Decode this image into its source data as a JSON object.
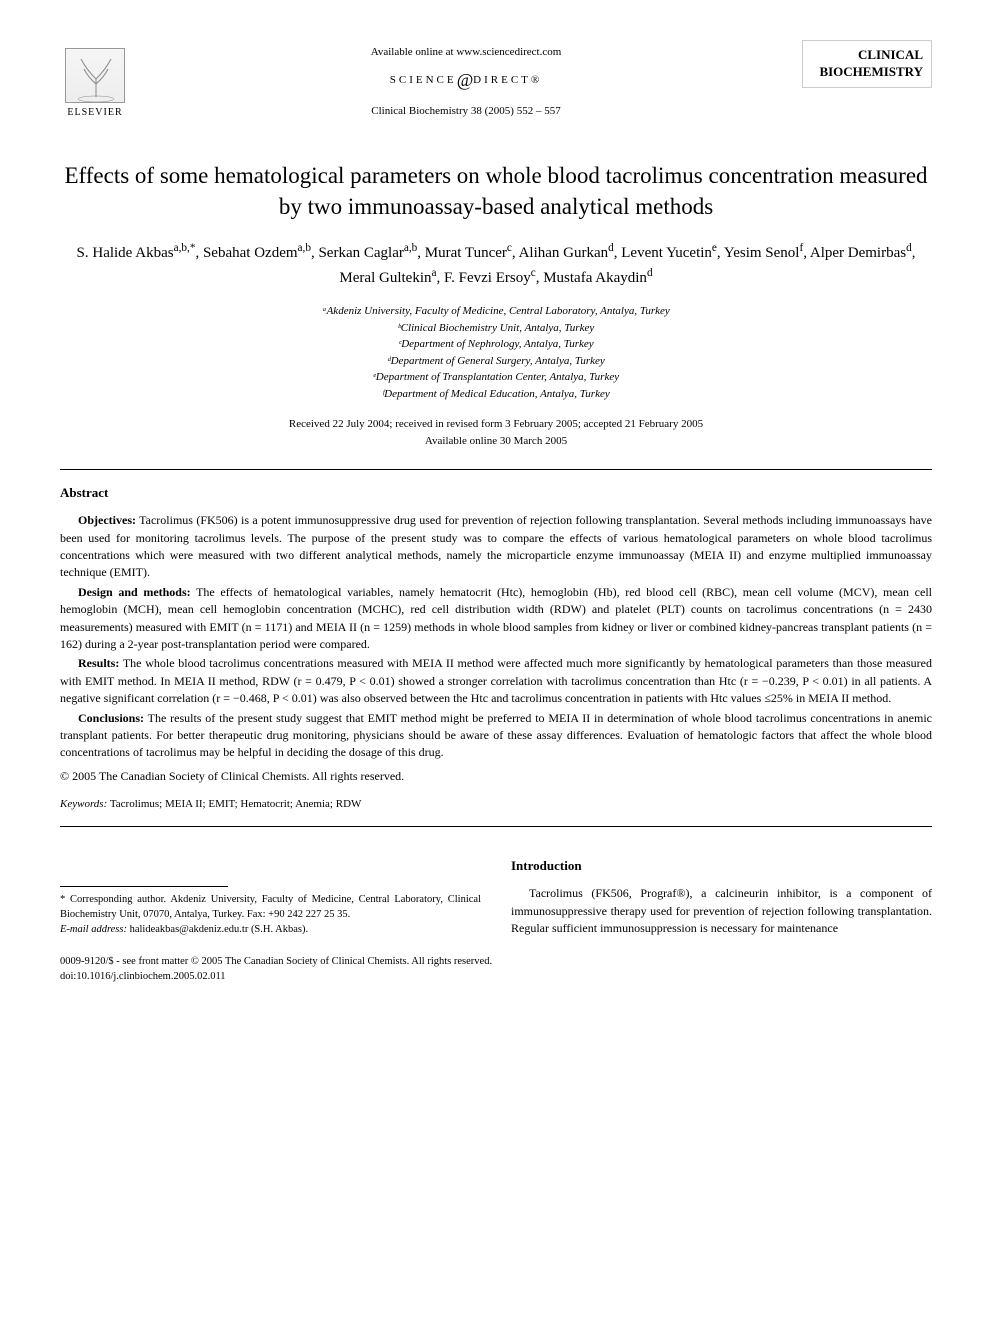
{
  "header": {
    "available_online": "Available online at www.sciencedirect.com",
    "sd_left": "SCIENCE",
    "sd_right": "DIRECT®",
    "journal_ref": "Clinical Biochemistry 38 (2005) 552 – 557",
    "elsevier": "ELSEVIER",
    "journal_logo_l1": "CLINICAL",
    "journal_logo_l2": "BIOCHEMISTRY"
  },
  "title": "Effects of some hematological parameters on whole blood tacrolimus concentration measured by two immunoassay-based analytical methods",
  "authors_html": "S. Halide Akbas<sup>a,b,*</sup>, Sebahat Ozdem<sup>a,b</sup>, Serkan Caglar<sup>a,b</sup>, Murat Tuncer<sup>c</sup>, Alihan Gurkan<sup>d</sup>, Levent Yucetin<sup>e</sup>, Yesim Senol<sup>f</sup>, Alper Demirbas<sup>d</sup>, Meral Gultekin<sup>a</sup>, F. Fevzi Ersoy<sup>c</sup>, Mustafa Akaydin<sup>d</sup>",
  "affiliations": [
    "ᵃAkdeniz University, Faculty of Medicine, Central Laboratory, Antalya, Turkey",
    "ᵇClinical Biochemistry Unit, Antalya, Turkey",
    "ᶜDepartment of Nephrology, Antalya, Turkey",
    "ᵈDepartment of General Surgery, Antalya, Turkey",
    "ᵉDepartment of Transplantation Center, Antalya, Turkey",
    "ᶠDepartment of Medical Education, Antalya, Turkey"
  ],
  "dates": {
    "received": "Received 22 July 2004; received in revised form 3 February 2005; accepted 21 February 2005",
    "online": "Available online 30 March 2005"
  },
  "abstract": {
    "heading": "Abstract",
    "sections": [
      {
        "label": "Objectives:",
        "text": "Tacrolimus (FK506) is a potent immunosuppressive drug used for prevention of rejection following transplantation. Several methods including immunoassays have been used for monitoring tacrolimus levels. The purpose of the present study was to compare the effects of various hematological parameters on whole blood tacrolimus concentrations which were measured with two different analytical methods, namely the microparticle enzyme immunoassay (MEIA II) and enzyme multiplied immunoassay technique (EMIT)."
      },
      {
        "label": "Design and methods:",
        "text": "The effects of hematological variables, namely hematocrit (Htc), hemoglobin (Hb), red blood cell (RBC), mean cell volume (MCV), mean cell hemoglobin (MCH), mean cell hemoglobin concentration (MCHC), red cell distribution width (RDW) and platelet (PLT) counts on tacrolimus concentrations (n = 2430 measurements) measured with EMIT (n = 1171) and MEIA II (n = 1259) methods in whole blood samples from kidney or liver or combined kidney-pancreas transplant patients (n = 162) during a 2-year post-transplantation period were compared."
      },
      {
        "label": "Results:",
        "text": "The whole blood tacrolimus concentrations measured with MEIA II method were affected much more significantly by hematological parameters than those measured with EMIT method. In MEIA II method, RDW (r = 0.479, P < 0.01) showed a stronger correlation with tacrolimus concentration than Htc (r = −0.239, P < 0.01) in all patients. A negative significant correlation (r = −0.468, P < 0.01) was also observed between the Htc and tacrolimus concentration in patients with Htc values ≤25% in MEIA II method."
      },
      {
        "label": "Conclusions:",
        "text": "The results of the present study suggest that EMIT method might be preferred to MEIA II in determination of whole blood tacrolimus concentrations in anemic transplant patients. For better therapeutic drug monitoring, physicians should be aware of these assay differences. Evaluation of hematologic factors that affect the whole blood concentrations of tacrolimus may be helpful in deciding the dosage of this drug."
      }
    ],
    "copyright": "© 2005 The Canadian Society of Clinical Chemists. All rights reserved."
  },
  "keywords": {
    "label": "Keywords:",
    "text": "Tacrolimus; MEIA II; EMIT; Hematocrit; Anemia; RDW"
  },
  "intro": {
    "heading": "Introduction",
    "text": "Tacrolimus (FK506, Prograf®), a calcineurin inhibitor, is a component of immunosuppressive therapy used for prevention of rejection following transplantation. Regular sufficient immunosuppression is necessary for maintenance"
  },
  "corresponding": {
    "text": "* Corresponding author. Akdeniz University, Faculty of Medicine, Central Laboratory, Clinical Biochemistry Unit, 07070, Antalya, Turkey. Fax: +90 242 227 25 35.",
    "email_label": "E-mail address:",
    "email": "halideakbas@akdeniz.edu.tr (S.H. Akbas)."
  },
  "footer": {
    "line1": "0009-9120/$ - see front matter © 2005 The Canadian Society of Clinical Chemists. All rights reserved.",
    "line2": "doi:10.1016/j.clinbiochem.2005.02.011"
  },
  "colors": {
    "text": "#000000",
    "bg": "#ffffff",
    "rule": "#000000",
    "logo_border": "#cccccc"
  },
  "typography": {
    "title_fontsize": 23,
    "authors_fontsize": 15,
    "body_fontsize": 12,
    "aff_fontsize": 11,
    "footer_fontsize": 10.5
  }
}
